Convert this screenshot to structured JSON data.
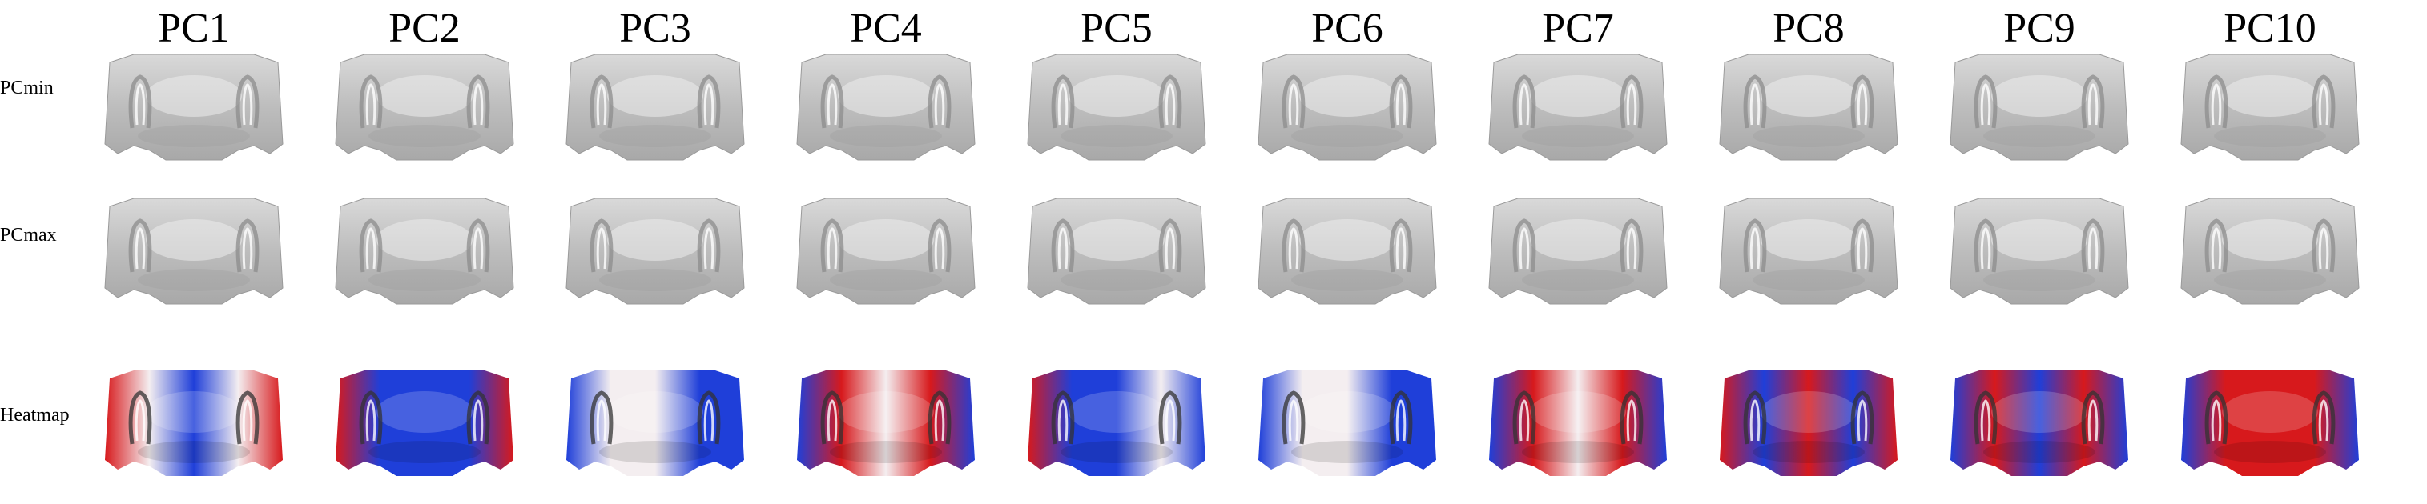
{
  "columns": [
    "PC1",
    "PC2",
    "PC3",
    "PC4",
    "PC5",
    "PC6",
    "PC7",
    "PC8",
    "PC9",
    "PC10"
  ],
  "rows": [
    "PCmin",
    "PCmax",
    "Heatmap"
  ],
  "colors": {
    "mesh_gray": "#bdbdbd",
    "mesh_dark": "#8c8c8c",
    "heat_red": "#d7191c",
    "heat_blue": "#1f3fd9",
    "heat_white": "#f4eef0"
  },
  "heatmap_patterns": [
    [
      "red",
      "white",
      "blue",
      "white",
      "red"
    ],
    [
      "red",
      "blue",
      "blue",
      "blue",
      "red"
    ],
    [
      "blue",
      "white",
      "white",
      "blue",
      "blue"
    ],
    [
      "blue",
      "red",
      "white",
      "red",
      "blue"
    ],
    [
      "red",
      "blue",
      "blue",
      "white",
      "blue"
    ],
    [
      "blue",
      "white",
      "white",
      "blue",
      "blue"
    ],
    [
      "blue",
      "red",
      "white",
      "red",
      "blue"
    ],
    [
      "red",
      "blue",
      "red",
      "blue",
      "red"
    ],
    [
      "blue",
      "red",
      "blue",
      "red",
      "blue"
    ],
    [
      "blue",
      "red",
      "red",
      "red",
      "blue"
    ]
  ]
}
